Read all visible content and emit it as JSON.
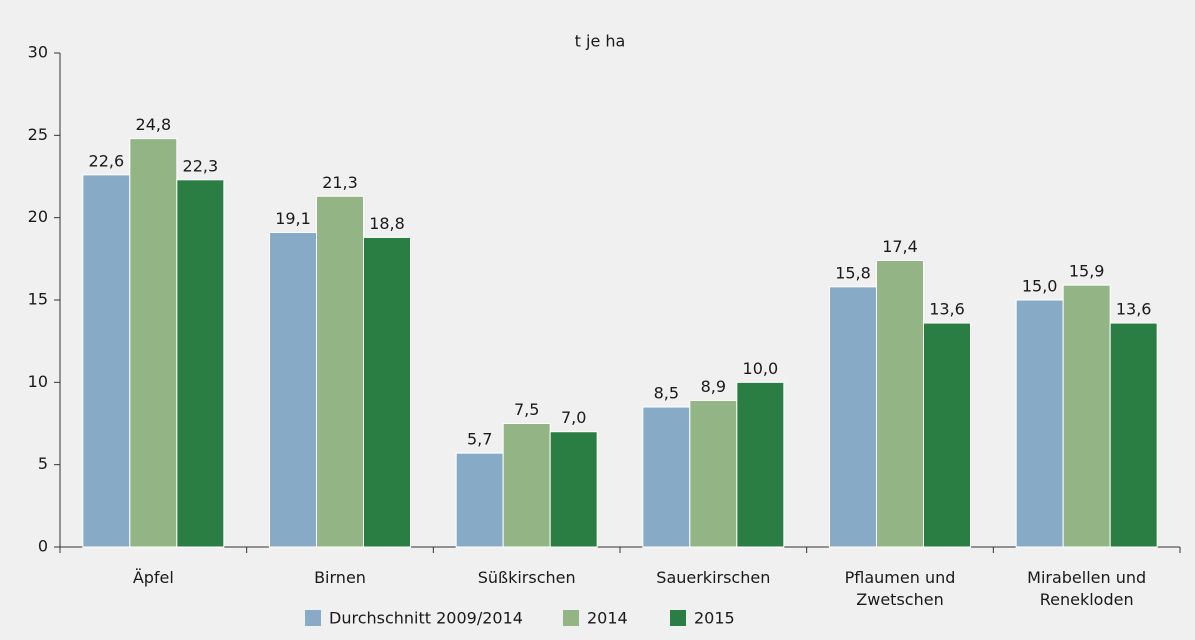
{
  "chart_data": {
    "type": "bar",
    "title": "t je ha",
    "categories": [
      "Äpfel",
      "Birnen",
      "Süßkirschen",
      "Sauerkirschen",
      "Pflaumen und Zwetschen",
      "Mirabellen und Renekloden"
    ],
    "series": [
      {
        "name": "Durchschnitt 2009/2014",
        "color": "#87abc7",
        "values": [
          22.6,
          19.1,
          5.7,
          8.5,
          15.8,
          15.0
        ],
        "value_labels": [
          "22,6",
          "19,1",
          "5,7",
          "8,5",
          "15,8",
          "15,0"
        ]
      },
      {
        "name": "2014",
        "color": "#93b485",
        "values": [
          24.8,
          21.3,
          7.5,
          8.9,
          17.4,
          15.9
        ],
        "value_labels": [
          "24,8",
          "21,3",
          "7,5",
          "8,9",
          "17,4",
          "15,9"
        ]
      },
      {
        "name": "2015",
        "color": "#2a7e44",
        "values": [
          22.3,
          18.8,
          7.0,
          10.0,
          13.6,
          13.6
        ],
        "value_labels": [
          "22,3",
          "18,8",
          "7,0",
          "10,0",
          "13,6",
          "13,6"
        ]
      }
    ],
    "ylim": [
      0,
      30
    ],
    "yticks": [
      0,
      5,
      10,
      15,
      20,
      25,
      30
    ],
    "grid": false,
    "legend": "bottom"
  }
}
